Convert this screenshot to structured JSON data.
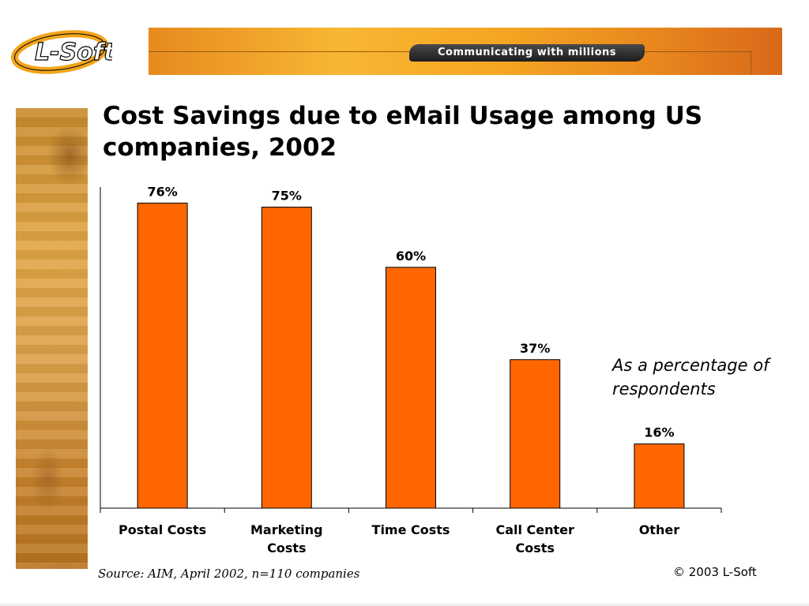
{
  "header": {
    "logo_text": "L-Soft",
    "banner_tagline": "Communicating with millions"
  },
  "title": "Cost Savings due to eMail Usage among US companies, 2002",
  "note": "As a percentage of respondents",
  "source": "Source: AIM, April 2002, n=110 companies",
  "copyright": "© 2003 L-Soft",
  "colors": {
    "bar": "#ff6600",
    "bar_outline": "#000000",
    "banner_orange": "#f5a623"
  },
  "chart_data": {
    "type": "bar",
    "categories": [
      [
        "Postal Costs"
      ],
      [
        "Marketing",
        "Costs"
      ],
      [
        "Time Costs"
      ],
      [
        "Call Center",
        "Costs"
      ],
      [
        "Other"
      ]
    ],
    "values": [
      76,
      75,
      60,
      37,
      16
    ],
    "data_labels": [
      "76%",
      "75%",
      "60%",
      "37%",
      "16%"
    ],
    "ylim": [
      0,
      80
    ],
    "grid": false,
    "legend": "none",
    "xlabel": "",
    "ylabel": ""
  }
}
